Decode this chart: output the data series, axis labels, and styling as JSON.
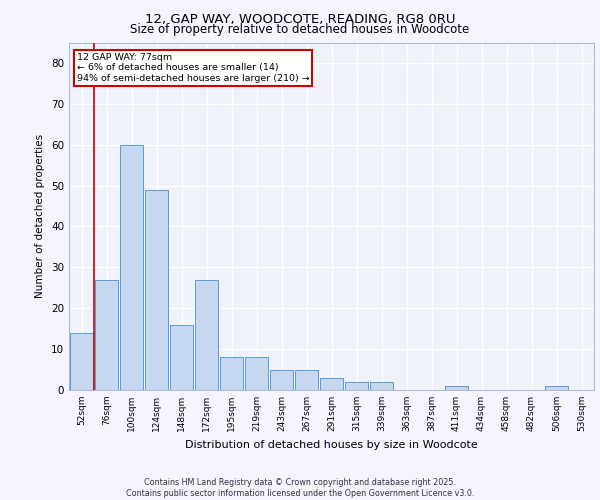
{
  "title": "12, GAP WAY, WOODCOTE, READING, RG8 0RU",
  "subtitle": "Size of property relative to detached houses in Woodcote",
  "xlabel": "Distribution of detached houses by size in Woodcote",
  "ylabel": "Number of detached properties",
  "categories": [
    "52sqm",
    "76sqm",
    "100sqm",
    "124sqm",
    "148sqm",
    "172sqm",
    "195sqm",
    "219sqm",
    "243sqm",
    "267sqm",
    "291sqm",
    "315sqm",
    "339sqm",
    "363sqm",
    "387sqm",
    "411sqm",
    "434sqm",
    "458sqm",
    "482sqm",
    "506sqm",
    "530sqm"
  ],
  "values": [
    14,
    27,
    60,
    49,
    16,
    27,
    8,
    8,
    5,
    5,
    3,
    2,
    2,
    0,
    0,
    1,
    0,
    0,
    0,
    1,
    0
  ],
  "bar_color": "#c5d8f0",
  "bar_edge_color": "#5b9bd5",
  "vline_x_index": 0.5,
  "marker_label": "12 GAP WAY: 77sqm",
  "annotation_line1": "← 6% of detached houses are smaller (14)",
  "annotation_line2": "94% of semi-detached houses are larger (210) →",
  "vline_color": "#cc0000",
  "annotation_box_edgecolor": "#cc0000",
  "ylim": [
    0,
    85
  ],
  "yticks": [
    0,
    10,
    20,
    30,
    40,
    50,
    60,
    70,
    80
  ],
  "background_color": "#eef2f9",
  "grid_color": "#ffffff",
  "footer_line1": "Contains HM Land Registry data © Crown copyright and database right 2025.",
  "footer_line2": "Contains public sector information licensed under the Open Government Licence v3.0."
}
